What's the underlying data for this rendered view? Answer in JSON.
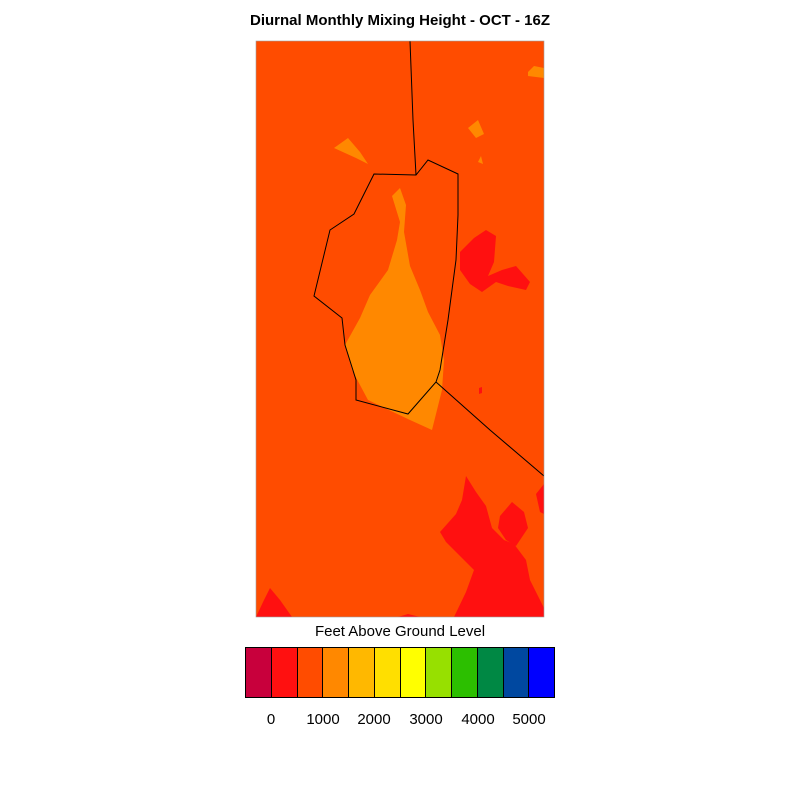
{
  "title": "Diurnal Monthly Mixing Height - OCT - 16Z",
  "legend": {
    "title": "Feet Above Ground Level",
    "colors": [
      "#c8003c",
      "#ff1010",
      "#ff4c00",
      "#ff8800",
      "#ffb800",
      "#ffdf00",
      "#ffff00",
      "#97e000",
      "#2cbf00",
      "#008844",
      "#0048a0",
      "#0000ff"
    ],
    "tick_labels": [
      "0",
      "1000",
      "2000",
      "3000",
      "4000",
      "5000"
    ]
  },
  "fill_colors": {
    "background": "#ff4c00",
    "low": "#ff1010",
    "mid": "#ff8800",
    "boundary": "#000000"
  }
}
